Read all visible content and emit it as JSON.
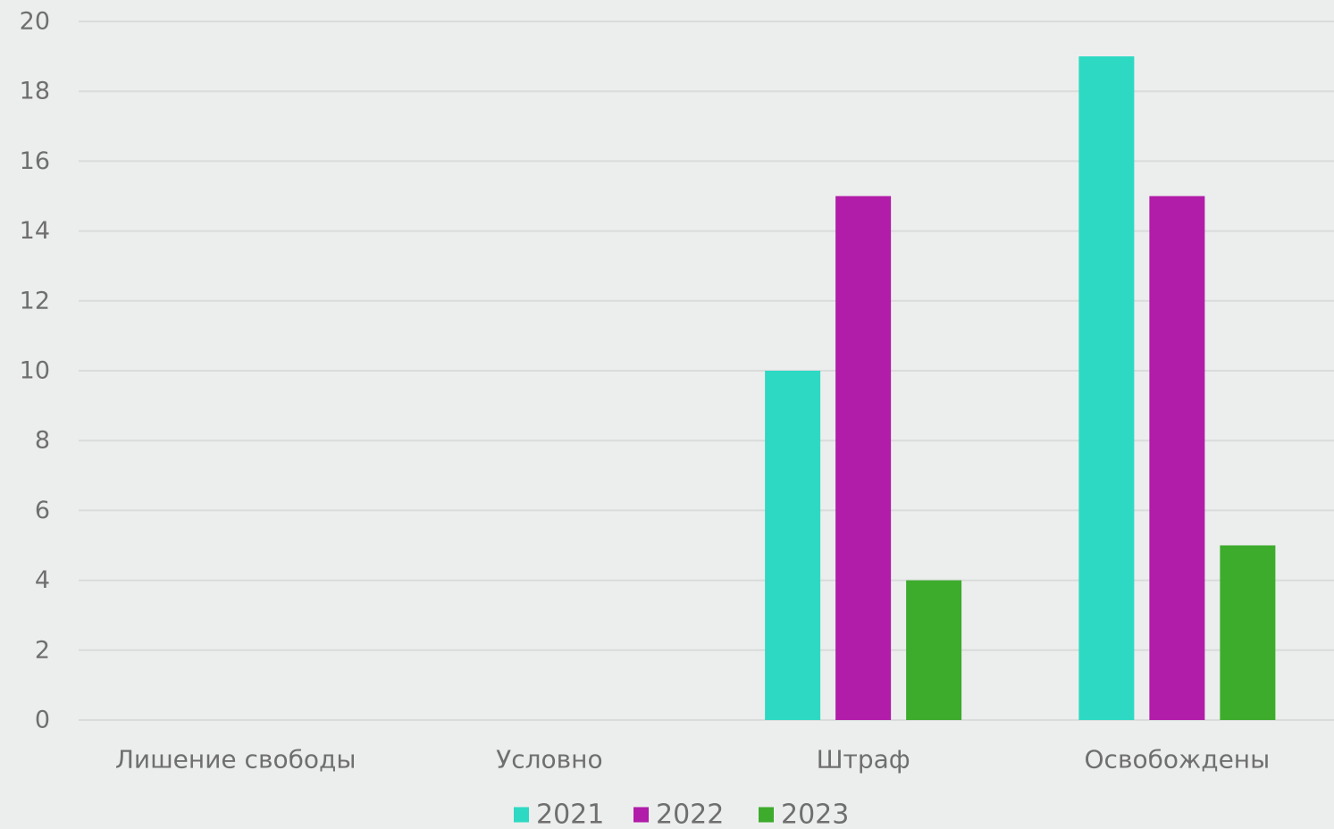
{
  "chart_data": {
    "type": "bar",
    "categories": [
      "Лишение свободы",
      "Условно",
      "Штраф",
      "Освобождены"
    ],
    "series": [
      {
        "name": "2021",
        "values": [
          0,
          0,
          10,
          19
        ],
        "color": "#2dd9c3"
      },
      {
        "name": "2022",
        "values": [
          0,
          0,
          15,
          15
        ],
        "color": "#b11ca9"
      },
      {
        "name": "2023",
        "values": [
          0,
          0,
          4,
          5
        ],
        "color": "#3dab2c"
      }
    ],
    "title": "",
    "xlabel": "",
    "ylabel": "",
    "ylim": [
      0,
      20
    ],
    "yticks": [
      0,
      2,
      4,
      6,
      8,
      10,
      12,
      14,
      16,
      18,
      20
    ],
    "grid": true,
    "legend_position": "bottom-center"
  }
}
